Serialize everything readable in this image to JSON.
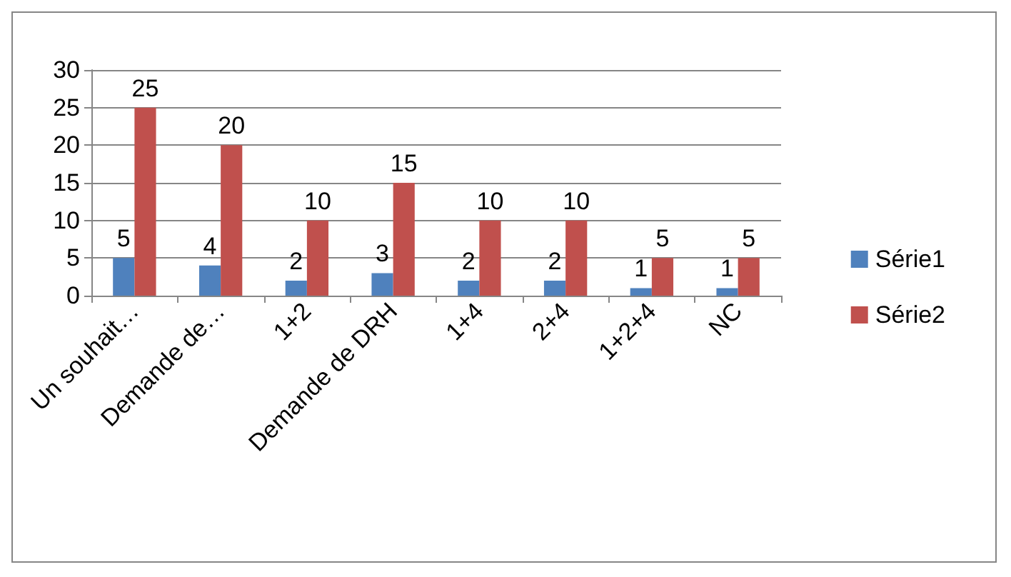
{
  "chart_data": {
    "type": "bar",
    "categories": [
      "Un souhait…",
      "Demande de…",
      "1+2",
      "Demande de DRH",
      "1+4",
      "2+4",
      "1+2+4",
      "NC"
    ],
    "series": [
      {
        "name": "Série1",
        "color": "#4f81bd",
        "values": [
          5,
          4,
          2,
          3,
          2,
          2,
          1,
          1
        ]
      },
      {
        "name": "Série2",
        "color": "#c0504d",
        "values": [
          25,
          20,
          10,
          15,
          10,
          10,
          5,
          5
        ]
      }
    ],
    "ylim": [
      0,
      30
    ],
    "yticks": [
      0,
      5,
      10,
      15,
      20,
      25,
      30
    ],
    "grid": "y",
    "legend": "right",
    "data_labels": true
  }
}
